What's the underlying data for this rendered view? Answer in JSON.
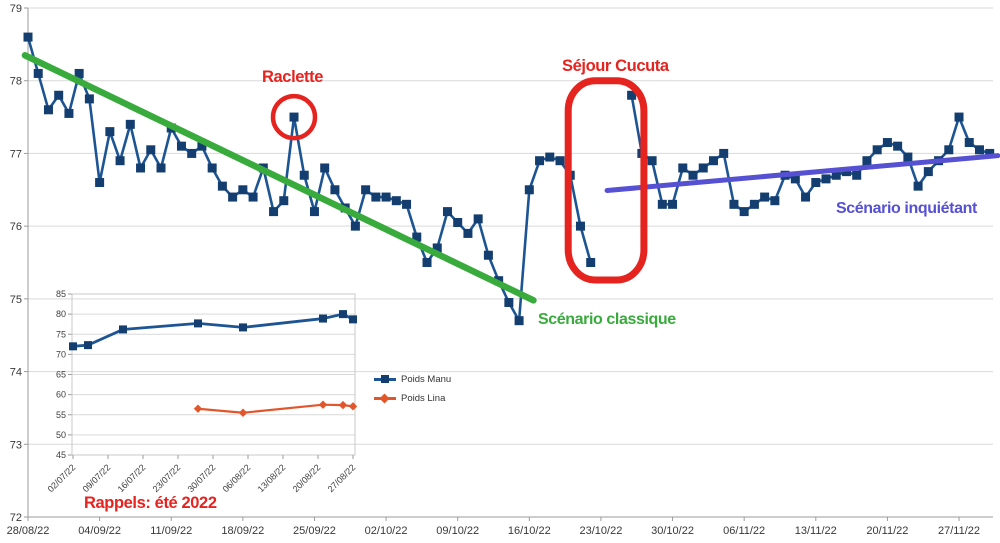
{
  "colors": {
    "navy_line": "#1d5493",
    "navy_marker": "#153e70",
    "green": "#38ab3c",
    "purple": "#5650d2",
    "red": "#e5231f",
    "orange": "#e2562c",
    "grid": "#d9d9d9",
    "axis": "#9b9b9b"
  },
  "annotations": {
    "raclette": "Raclette",
    "sejour": "Séjour Cucuta",
    "classique": "Scénario classique",
    "inquietant": "Scénario inquiétant",
    "rappels": "Rappels: été 2022"
  },
  "chart_data": [
    {
      "id": "main",
      "type": "line",
      "title": "",
      "ylim": [
        72,
        79
      ],
      "grid": true,
      "y_ticks": [
        79,
        78,
        77,
        76,
        75,
        74,
        73,
        72
      ],
      "x_ticks": [
        "28/08/22",
        "04/09/22",
        "11/09/22",
        "18/09/22",
        "25/09/22",
        "02/10/22",
        "09/10/22",
        "16/10/22",
        "23/10/22",
        "30/10/22",
        "06/11/22",
        "13/11/22",
        "20/11/22",
        "27/11/22"
      ],
      "series": [
        {
          "marker": "square",
          "start_date": "28/08/22",
          "values": [
            78.6,
            78.1,
            77.6,
            77.8,
            77.55,
            78.1,
            77.75,
            76.6,
            77.3,
            76.9,
            77.4,
            76.8,
            77.05,
            76.8,
            77.35,
            77.1,
            77.0,
            77.1,
            76.8,
            76.55,
            76.4,
            76.5,
            76.4,
            76.8,
            76.2,
            76.35,
            77.5,
            76.7,
            76.2,
            76.8,
            76.5,
            76.25,
            76.0,
            76.5,
            76.4,
            76.4,
            76.35,
            76.3,
            75.85,
            75.5,
            75.7,
            76.2,
            76.05,
            75.9,
            76.1,
            75.6,
            75.25,
            74.95,
            74.7,
            76.5,
            76.9,
            76.95,
            76.9,
            76.7,
            76.0,
            75.5,
            null,
            null,
            null,
            77.8,
            77.0,
            76.9,
            76.3,
            76.3,
            76.8,
            76.7,
            76.8,
            76.9,
            77.0,
            76.3,
            76.2,
            76.3,
            76.4,
            76.35,
            76.7,
            76.65,
            76.4,
            76.6,
            76.65,
            76.7,
            76.75,
            76.7,
            76.9,
            77.05,
            77.15,
            77.1,
            76.95,
            76.55,
            76.75,
            76.9,
            77.05,
            77.5,
            77.15,
            77.05,
            77.0
          ]
        }
      ],
      "trend_lines": [
        {
          "label": "Scénario classique",
          "color_key": "green",
          "width": 6.5,
          "from": [
            -0.3,
            78.35
          ],
          "to": [
            49.4,
            74.98
          ]
        },
        {
          "label": "Scénario inquiétant",
          "color_key": "purple",
          "width": 5,
          "from": [
            56.6,
            76.49
          ],
          "to": [
            94.8,
            76.97
          ]
        }
      ],
      "highlights": {
        "circle": {
          "d": 26,
          "v": 77.5,
          "r": 21
        },
        "box": {
          "d_from": 52.8,
          "d_to": 60.2,
          "v_top": 78.0,
          "v_bottom": 75.26
        }
      }
    },
    {
      "id": "inset",
      "type": "line",
      "title": "",
      "ylim": [
        45,
        85
      ],
      "grid": true,
      "y_ticks": [
        85,
        80,
        75,
        70,
        65,
        60,
        55,
        50,
        45
      ],
      "x_ticks": [
        "02/07/22",
        "09/07/22",
        "16/07/22",
        "23/07/22",
        "30/07/22",
        "06/08/22",
        "13/08/22",
        "20/08/22",
        "27/08/22"
      ],
      "legend_position": "right",
      "series": [
        {
          "name": "Poids Manu",
          "marker": "square",
          "days": [
            0,
            3,
            10,
            25,
            34,
            50,
            54,
            56
          ],
          "values": [
            72.0,
            72.3,
            76.2,
            77.7,
            76.7,
            78.9,
            80.0,
            78.7
          ]
        },
        {
          "name": "Poids Lina",
          "marker": "diamond",
          "days": [
            25,
            34,
            50,
            54,
            56
          ],
          "values": [
            56.5,
            55.5,
            57.5,
            57.4,
            57.1
          ]
        }
      ]
    }
  ]
}
